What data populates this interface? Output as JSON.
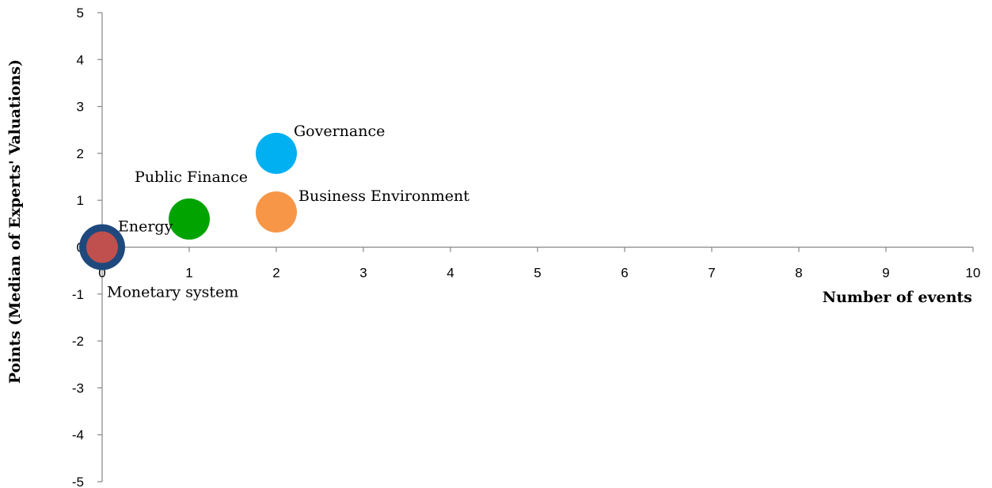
{
  "chart_data": {
    "type": "scatter",
    "title": "",
    "xlabel": "Number of events",
    "ylabel": "Points (Median of Experts' Valuations)",
    "xlim": [
      0,
      10
    ],
    "ylim": [
      -5,
      5
    ],
    "x_ticks": [
      "0",
      "1",
      "2",
      "3",
      "4",
      "5",
      "6",
      "7",
      "8",
      "9",
      "10"
    ],
    "y_ticks": [
      "5",
      "4",
      "3",
      "2",
      "1",
      "0",
      "-1",
      "-2",
      "-3",
      "-4",
      "-5"
    ],
    "grid": false,
    "legend": "none",
    "points": [
      {
        "label": "Governance",
        "x": 2,
        "y": 2.0,
        "color": "#00B0F0"
      },
      {
        "label": "Business Environment",
        "x": 2,
        "y": 0.75,
        "color": "#F79646"
      },
      {
        "label": "Public Finance",
        "x": 1,
        "y": 0.6,
        "color": "#00A300"
      },
      {
        "label": "Energy",
        "x": 0,
        "y": 0,
        "color": "#1F497D"
      },
      {
        "label": "Monetary system",
        "x": 0,
        "y": 0,
        "color": "#C0504D"
      }
    ]
  }
}
